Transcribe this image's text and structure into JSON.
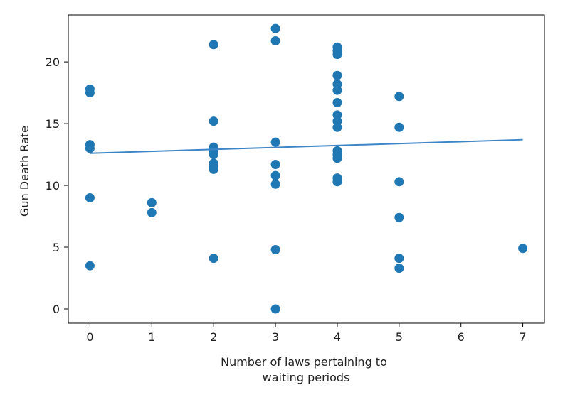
{
  "chart_data": {
    "type": "scatter",
    "xlabel_lines": [
      "Number of laws pertaining to",
      "waiting periods"
    ],
    "ylabel": "Gun Death Rate",
    "xlim": [
      -0.35,
      7.35
    ],
    "ylim": [
      -1.15,
      23.8
    ],
    "xticks": [
      0,
      1,
      2,
      3,
      4,
      5,
      6,
      7
    ],
    "yticks": [
      0,
      5,
      10,
      15,
      20
    ],
    "point_color": "#1f77b4",
    "line_color": "#3d85c6",
    "points": [
      {
        "x": 0,
        "y": 17.8
      },
      {
        "x": 0,
        "y": 17.5
      },
      {
        "x": 0,
        "y": 13.3
      },
      {
        "x": 0,
        "y": 13.0
      },
      {
        "x": 0,
        "y": 9.0
      },
      {
        "x": 0,
        "y": 3.5
      },
      {
        "x": 1,
        "y": 8.6
      },
      {
        "x": 1,
        "y": 7.8
      },
      {
        "x": 2,
        "y": 21.4
      },
      {
        "x": 2,
        "y": 15.2
      },
      {
        "x": 2,
        "y": 13.1
      },
      {
        "x": 2,
        "y": 12.8
      },
      {
        "x": 2,
        "y": 12.5
      },
      {
        "x": 2,
        "y": 11.8
      },
      {
        "x": 2,
        "y": 11.5
      },
      {
        "x": 2,
        "y": 11.3
      },
      {
        "x": 2,
        "y": 4.1
      },
      {
        "x": 3,
        "y": 22.7
      },
      {
        "x": 3,
        "y": 21.7
      },
      {
        "x": 3,
        "y": 13.5
      },
      {
        "x": 3,
        "y": 11.7
      },
      {
        "x": 3,
        "y": 10.8
      },
      {
        "x": 3,
        "y": 10.1
      },
      {
        "x": 3,
        "y": 4.8
      },
      {
        "x": 3,
        "y": 0.0
      },
      {
        "x": 4,
        "y": 21.2
      },
      {
        "x": 4,
        "y": 20.9
      },
      {
        "x": 4,
        "y": 20.6
      },
      {
        "x": 4,
        "y": 18.9
      },
      {
        "x": 4,
        "y": 18.2
      },
      {
        "x": 4,
        "y": 17.7
      },
      {
        "x": 4,
        "y": 16.7
      },
      {
        "x": 4,
        "y": 15.7
      },
      {
        "x": 4,
        "y": 15.2
      },
      {
        "x": 4,
        "y": 14.7
      },
      {
        "x": 4,
        "y": 12.8
      },
      {
        "x": 4,
        "y": 12.5
      },
      {
        "x": 4,
        "y": 12.2
      },
      {
        "x": 4,
        "y": 10.6
      },
      {
        "x": 4,
        "y": 10.3
      },
      {
        "x": 5,
        "y": 17.2
      },
      {
        "x": 5,
        "y": 14.7
      },
      {
        "x": 5,
        "y": 10.3
      },
      {
        "x": 5,
        "y": 7.4
      },
      {
        "x": 5,
        "y": 4.1
      },
      {
        "x": 5,
        "y": 3.3
      },
      {
        "x": 7,
        "y": 4.9
      }
    ],
    "trend_line": {
      "x": [
        0,
        7
      ],
      "y": [
        12.6,
        13.7
      ]
    }
  }
}
